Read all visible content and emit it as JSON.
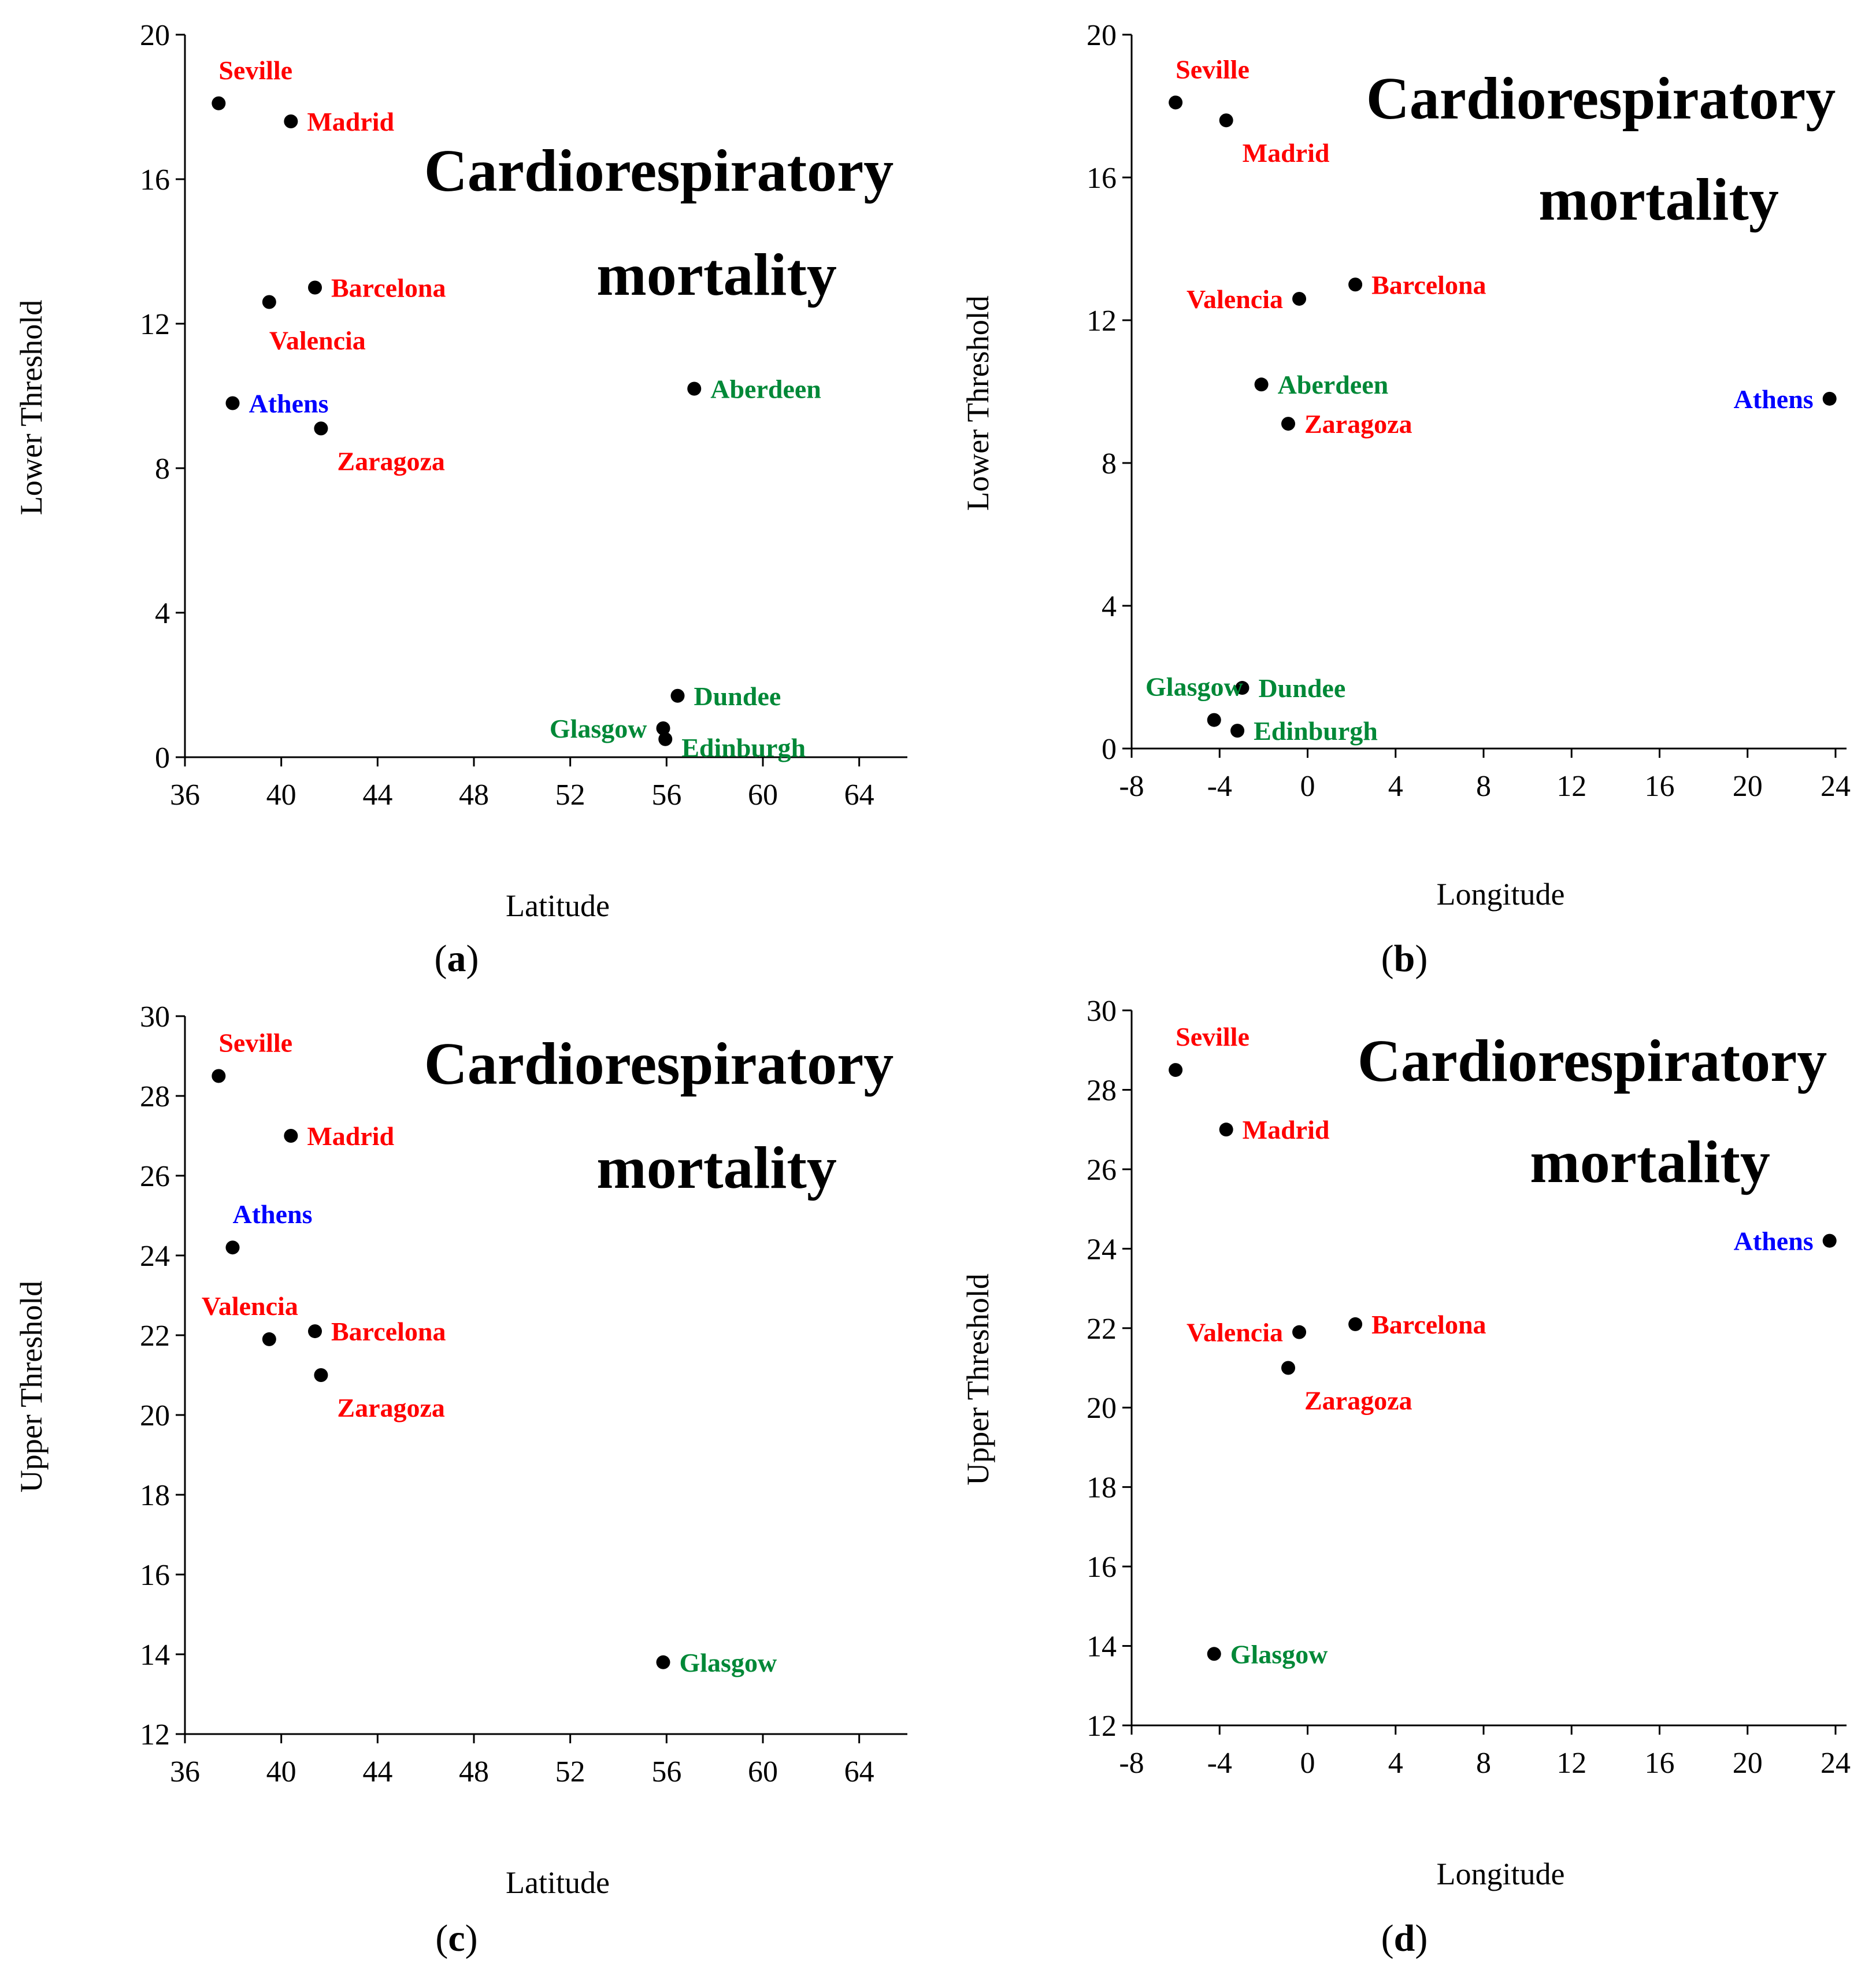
{
  "chart_data": [
    {
      "type": "scatter",
      "panel": "a",
      "caption": "(a)",
      "caption_letter": "a",
      "title_lines": [
        "Cardiorespiratory",
        "mortality"
      ],
      "xlabel": "Latitude",
      "ylabel": "Lower Threshold",
      "xlim": [
        36,
        66
      ],
      "ylim": [
        0,
        20
      ],
      "xticks": [
        36,
        40,
        44,
        48,
        52,
        56,
        60,
        64
      ],
      "yticks": [
        0,
        4,
        8,
        12,
        16,
        20
      ],
      "points": [
        {
          "label": "Seville",
          "x": 37.4,
          "y": 18.1,
          "color": "#ff0000",
          "pos": "above-right"
        },
        {
          "label": "Madrid",
          "x": 40.4,
          "y": 17.6,
          "color": "#ff0000",
          "pos": "right"
        },
        {
          "label": "Barcelona",
          "x": 41.4,
          "y": 13.0,
          "color": "#ff0000",
          "pos": "right"
        },
        {
          "label": "Valencia",
          "x": 39.5,
          "y": 12.6,
          "color": "#ff0000",
          "pos": "below"
        },
        {
          "label": "Athens",
          "x": 37.98,
          "y": 9.8,
          "color": "#0000ff",
          "pos": "right"
        },
        {
          "label": "Zaragoza",
          "x": 41.65,
          "y": 9.1,
          "color": "#ff0000",
          "pos": "below-right"
        },
        {
          "label": "Aberdeen",
          "x": 57.15,
          "y": 10.2,
          "color": "#008837",
          "pos": "right"
        },
        {
          "label": "Dundee",
          "x": 56.46,
          "y": 1.7,
          "color": "#008837",
          "pos": "right"
        },
        {
          "label": "Glasgow",
          "x": 55.86,
          "y": 0.8,
          "color": "#008837",
          "pos": "left"
        },
        {
          "label": "Edinburgh",
          "x": 55.95,
          "y": 0.5,
          "color": "#008837",
          "pos": "right-low"
        }
      ]
    },
    {
      "type": "scatter",
      "panel": "b",
      "caption": "(b)",
      "caption_letter": "b",
      "title_lines": [
        "Cardiorespiratory",
        "mortality"
      ],
      "xlabel": "Longitude",
      "ylabel": "Lower Threshold",
      "xlim": [
        -8,
        24.5
      ],
      "ylim": [
        0,
        20
      ],
      "xticks": [
        -8,
        -4,
        0,
        4,
        8,
        12,
        16,
        20,
        24
      ],
      "yticks": [
        0,
        4,
        8,
        12,
        16,
        20
      ],
      "points": [
        {
          "label": "Seville",
          "x": -6.0,
          "y": 18.1,
          "color": "#ff0000",
          "pos": "above-right"
        },
        {
          "label": "Madrid",
          "x": -3.7,
          "y": 17.6,
          "color": "#ff0000",
          "pos": "below-right"
        },
        {
          "label": "Valencia",
          "x": -0.38,
          "y": 12.6,
          "color": "#ff0000",
          "pos": "left"
        },
        {
          "label": "Barcelona",
          "x": 2.17,
          "y": 13.0,
          "color": "#ff0000",
          "pos": "right"
        },
        {
          "label": "Aberdeen",
          "x": -2.1,
          "y": 10.2,
          "color": "#008837",
          "pos": "right"
        },
        {
          "label": "Zaragoza",
          "x": -0.88,
          "y": 9.1,
          "color": "#ff0000",
          "pos": "right"
        },
        {
          "label": "Athens",
          "x": 23.73,
          "y": 9.8,
          "color": "#0000ff",
          "pos": "left"
        },
        {
          "label": "Dundee",
          "x": -2.97,
          "y": 1.7,
          "color": "#008837",
          "pos": "right"
        },
        {
          "label": "Glasgow",
          "x": -4.25,
          "y": 0.8,
          "color": "#008837",
          "pos": "above-left"
        },
        {
          "label": "Edinburgh",
          "x": -3.19,
          "y": 0.5,
          "color": "#008837",
          "pos": "right"
        }
      ]
    },
    {
      "type": "scatter",
      "panel": "c",
      "caption": "(c)",
      "caption_letter": "c",
      "title_lines": [
        "Cardiorespiratory",
        "mortality"
      ],
      "xlabel": "Latitude",
      "ylabel": "Upper Threshold",
      "xlim": [
        36,
        66
      ],
      "ylim": [
        12,
        30
      ],
      "xticks": [
        36,
        40,
        44,
        48,
        52,
        56,
        60,
        64
      ],
      "yticks": [
        12,
        14,
        16,
        18,
        20,
        22,
        24,
        26,
        28,
        30
      ],
      "points": [
        {
          "label": "Seville",
          "x": 37.4,
          "y": 28.5,
          "color": "#ff0000",
          "pos": "above-right"
        },
        {
          "label": "Madrid",
          "x": 40.4,
          "y": 27.0,
          "color": "#ff0000",
          "pos": "right"
        },
        {
          "label": "Athens",
          "x": 37.98,
          "y": 24.2,
          "color": "#0000ff",
          "pos": "above-right"
        },
        {
          "label": "Valencia",
          "x": 39.5,
          "y": 21.9,
          "color": "#ff0000",
          "pos": "above-left"
        },
        {
          "label": "Barcelona",
          "x": 41.4,
          "y": 22.1,
          "color": "#ff0000",
          "pos": "right"
        },
        {
          "label": "Zaragoza",
          "x": 41.65,
          "y": 21.0,
          "color": "#ff0000",
          "pos": "below-right"
        },
        {
          "label": "Glasgow",
          "x": 55.86,
          "y": 13.8,
          "color": "#008837",
          "pos": "right"
        }
      ]
    },
    {
      "type": "scatter",
      "panel": "d",
      "caption": "(d)",
      "caption_letter": "d",
      "title_lines": [
        "Cardiorespiratory",
        "mortality"
      ],
      "xlabel": "Longitude",
      "ylabel": "Upper Threshold",
      "xlim": [
        -8,
        24.5
      ],
      "ylim": [
        12,
        30
      ],
      "xticks": [
        -8,
        -4,
        0,
        4,
        8,
        12,
        16,
        20,
        24
      ],
      "yticks": [
        12,
        14,
        16,
        18,
        20,
        22,
        24,
        26,
        28,
        30
      ],
      "points": [
        {
          "label": "Seville",
          "x": -6.0,
          "y": 28.5,
          "color": "#ff0000",
          "pos": "above-right"
        },
        {
          "label": "Madrid",
          "x": -3.7,
          "y": 27.0,
          "color": "#ff0000",
          "pos": "right"
        },
        {
          "label": "Athens",
          "x": 23.73,
          "y": 24.2,
          "color": "#0000ff",
          "pos": "left"
        },
        {
          "label": "Valencia",
          "x": -0.38,
          "y": 21.9,
          "color": "#ff0000",
          "pos": "left"
        },
        {
          "label": "Barcelona",
          "x": 2.17,
          "y": 22.1,
          "color": "#ff0000",
          "pos": "right"
        },
        {
          "label": "Zaragoza",
          "x": -0.88,
          "y": 21.0,
          "color": "#ff0000",
          "pos": "below-right"
        },
        {
          "label": "Glasgow",
          "x": -4.25,
          "y": 13.8,
          "color": "#008837",
          "pos": "right"
        }
      ]
    }
  ]
}
